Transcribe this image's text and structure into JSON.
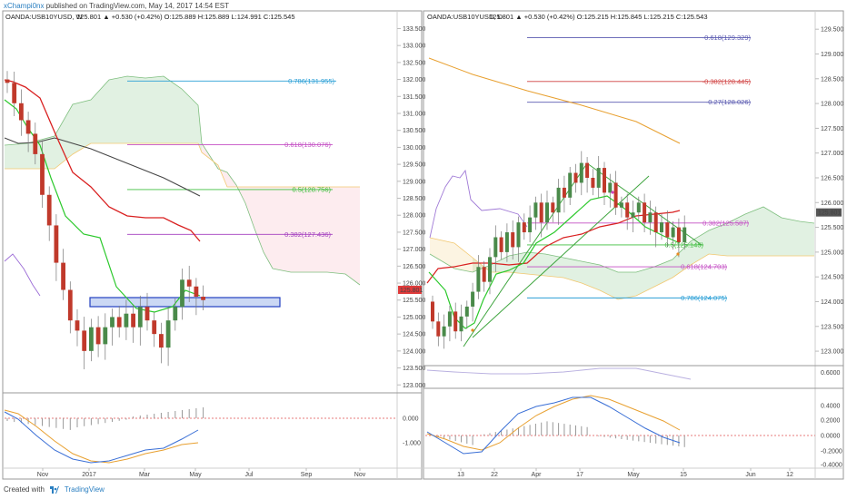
{
  "header": {
    "username": "xChampi0nx",
    "publish_text": "published on TradingView.com, May 14, 2017 14:54 EST"
  },
  "footer": {
    "created_with": "Created with",
    "brand": "TradingView"
  },
  "chart_data": [
    {
      "type": "candlestick",
      "symbol_label": "OANDA:USB10YUSD, W",
      "ohlc_text": "125.801 ▲ +0.530 (+0.42%) O:125.889 H:125.889 L:124.991 C:125.545",
      "last_price": "125.801",
      "ylim": [
        122.9,
        133.7
      ],
      "yticks": [
        "133.500",
        "133.000",
        "132.500",
        "132.000",
        "131.500",
        "131.000",
        "130.500",
        "130.000",
        "129.500",
        "129.000",
        "128.500",
        "128.000",
        "127.500",
        "127.000",
        "126.500",
        "126.000",
        "125.500",
        "125.000",
        "124.500",
        "124.000",
        "123.500",
        "123.000"
      ],
      "xticks": [
        "Nov",
        "2017",
        "Mar",
        "May",
        "Jul",
        "Sep",
        "Nov"
      ],
      "fib_levels": [
        {
          "label": "0.786(131.955)",
          "value": 131.955,
          "color": "#2a9fd6"
        },
        {
          "label": "0.618(130.076)",
          "value": 130.076,
          "color": "#c44fc4"
        },
        {
          "label": "0.5(128.756)",
          "value": 128.756,
          "color": "#3fbf3f"
        },
        {
          "label": "0.382(127.436)",
          "value": 127.436,
          "color": "#a33fbf"
        }
      ],
      "closes": [
        131.9,
        131.3,
        130.8,
        130.4,
        129.8,
        128.6,
        127.7,
        126.6,
        125.8,
        124.9,
        124.6,
        124.0,
        124.7,
        124.2,
        124.7,
        125.0,
        124.7,
        125.1,
        124.7,
        125.3,
        124.9,
        124.5,
        124.1,
        124.9,
        125.3,
        126.1,
        125.9,
        125.6,
        125.5
      ],
      "oscillator": {
        "yticks": [
          "0.000",
          "-1.000"
        ]
      }
    },
    {
      "type": "candlestick",
      "symbol_label": "OANDA:USB10YUSD, D",
      "ohlc_text": "125.801 ▲ +0.530 (+0.42%) O:125.215 H:125.845 L:125.215 C:125.543",
      "last_price": "125.801",
      "ylim": [
        122.8,
        129.65
      ],
      "yticks": [
        "129.500",
        "129.000",
        "128.500",
        "128.000",
        "127.500",
        "127.000",
        "126.500",
        "126.000",
        "125.500",
        "125.000",
        "124.500",
        "124.000",
        "123.500",
        "123.000"
      ],
      "xticks": [
        "13",
        "22",
        "Apr",
        "17",
        "May",
        "15",
        "Jun",
        "12"
      ],
      "fib_levels": [
        {
          "label": "-0.618(129.329)",
          "value": 129.329,
          "color": "#5a5ab0"
        },
        {
          "label": "-0.382(128.445)",
          "value": 128.445,
          "color": "#d04040"
        },
        {
          "label": "-0.27(128.026)",
          "value": 128.026,
          "color": "#5a5ab0"
        },
        {
          "label": "0.382(125.587)",
          "value": 125.587,
          "color": "#c44fc4"
        },
        {
          "label": "0.5(125.145)",
          "value": 125.145,
          "color": "#3fbf3f"
        },
        {
          "label": "0.618(124.703)",
          "value": 124.703,
          "color": "#c44fc4"
        },
        {
          "label": "0.786(124.075)",
          "value": 124.075,
          "color": "#2a9fd6"
        }
      ],
      "closes": [
        123.6,
        123.3,
        123.5,
        123.8,
        123.4,
        123.7,
        123.9,
        124.2,
        124.7,
        124.4,
        124.9,
        125.3,
        125.0,
        125.4,
        125.1,
        125.6,
        125.4,
        125.7,
        126.0,
        125.6,
        126.0,
        125.8,
        126.3,
        126.1,
        126.6,
        126.4,
        126.8,
        126.5,
        126.3,
        126.7,
        126.2,
        126.4,
        125.9,
        126.0,
        125.7,
        125.8,
        126.0,
        125.6,
        125.8,
        125.4,
        125.6,
        125.3,
        125.5,
        125.2,
        125.5
      ],
      "volume": {
        "yticks": [
          "0.6000"
        ]
      },
      "oscillator": {
        "yticks": [
          "0.4000",
          "0.2000",
          "0.0000",
          "-0.2000",
          "-0.4000"
        ]
      }
    }
  ]
}
